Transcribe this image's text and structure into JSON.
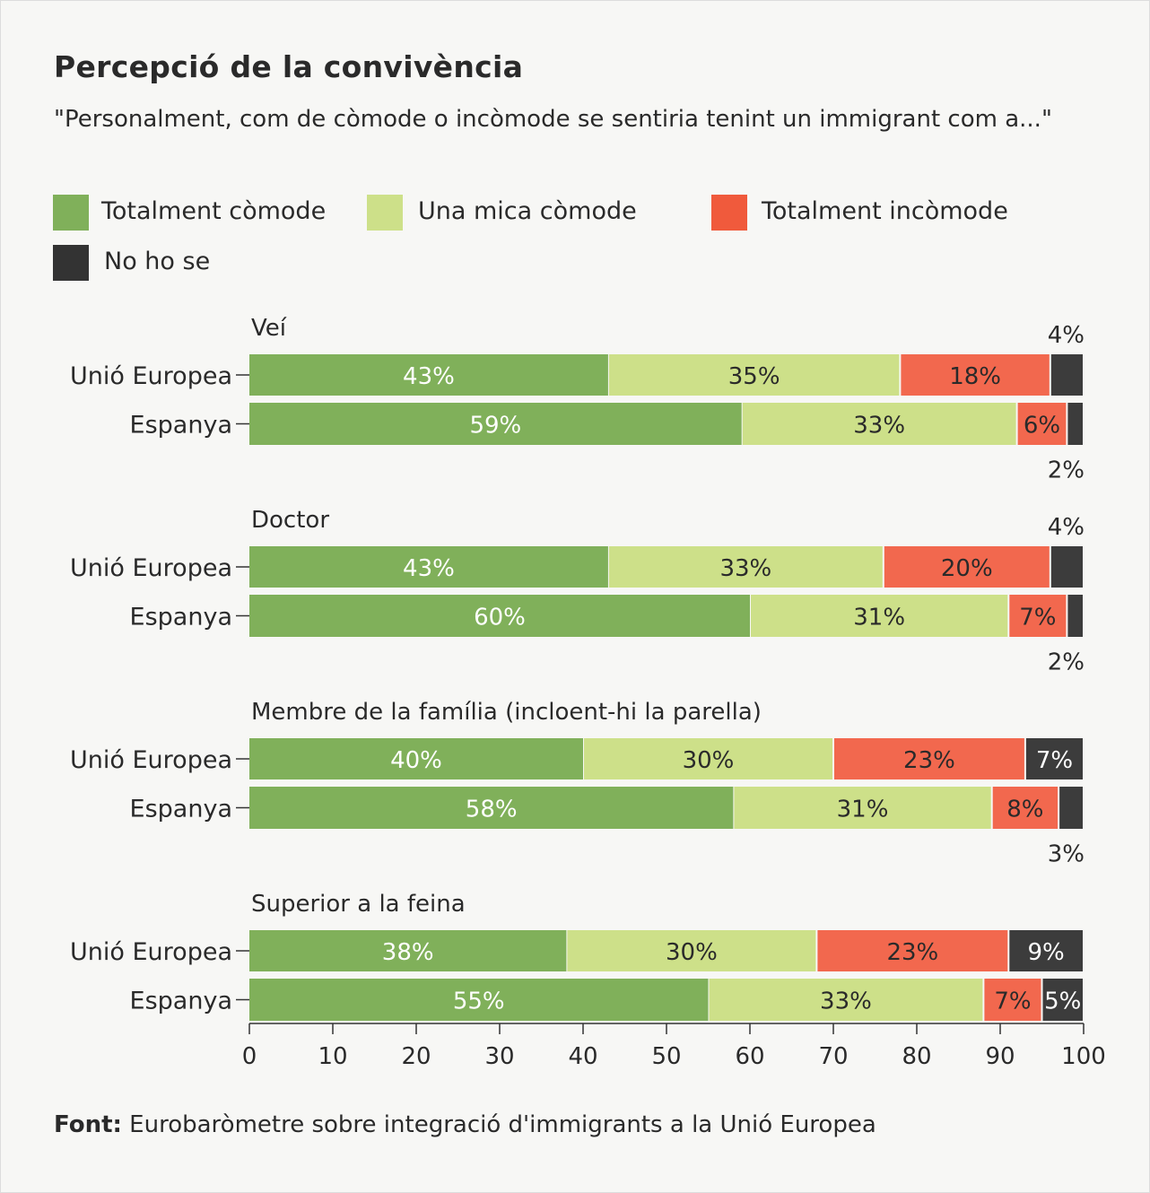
{
  "title": "Percepció de la convivència",
  "subtitle": "\"Personalment, com de còmode o incòmode se sentiria tenint un immigrant com a...\"",
  "source": {
    "label": "Font:",
    "text": "Eurobaròmetre sobre integració d'immigrants a la Unió Europea"
  },
  "colors": {
    "Totalment còmode": "#80b05a",
    "Una mica còmode": "#cde089",
    "Totalment incòmode": "#f2684e",
    "No ho se": "#3c3c3c"
  },
  "legend": [
    {
      "label": "Totalment còmode",
      "color": "#80b05a"
    },
    {
      "label": "Una mica còmode",
      "color": "#cde089"
    },
    {
      "label": "Totalment incòmode",
      "color": "#f05a3c"
    },
    {
      "label": "No ho se",
      "color": "#333333"
    }
  ],
  "chart_data": {
    "type": "bar",
    "orientation": "horizontal-stacked",
    "xlim": [
      0,
      100
    ],
    "xticks": [
      0,
      10,
      20,
      30,
      40,
      50,
      60,
      70,
      80,
      90,
      100
    ],
    "series_names": [
      "Totalment còmode",
      "Una mica còmode",
      "Totalment incòmode",
      "No ho se"
    ],
    "groups": [
      {
        "label": "Veí",
        "rows": [
          {
            "label": "Unió Europea",
            "values": [
              43,
              35,
              18,
              4
            ]
          },
          {
            "label": "Espanya",
            "values": [
              59,
              33,
              6,
              2
            ]
          }
        ]
      },
      {
        "label": "Doctor",
        "rows": [
          {
            "label": "Unió Europea",
            "values": [
              43,
              33,
              20,
              4
            ]
          },
          {
            "label": "Espanya",
            "values": [
              60,
              31,
              7,
              2
            ]
          }
        ]
      },
      {
        "label": "Membre de la família (incloent-hi la parella)",
        "rows": [
          {
            "label": "Unió Europea",
            "values": [
              40,
              30,
              23,
              7
            ]
          },
          {
            "label": "Espanya",
            "values": [
              58,
              31,
              8,
              3
            ]
          }
        ]
      },
      {
        "label": "Superior a la feina",
        "rows": [
          {
            "label": "Unió Europea",
            "values": [
              38,
              30,
              23,
              9
            ]
          },
          {
            "label": "Espanya",
            "values": [
              55,
              33,
              7,
              5
            ]
          }
        ]
      }
    ]
  }
}
